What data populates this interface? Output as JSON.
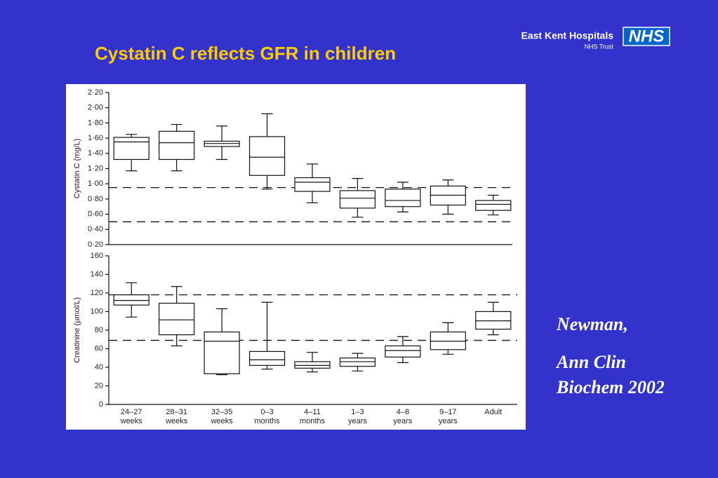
{
  "slide": {
    "title": "Cystatin C reflects GFR in children",
    "org": "East Kent Hospitals",
    "org_sub": "NHS Trust",
    "logo": "NHS",
    "reference": [
      "Newman,",
      "Ann Clin",
      "Biochem 2002"
    ]
  },
  "chart_data": [
    {
      "type": "box",
      "y_label": "Cystatin C (mg/L)",
      "ylim": [
        0.2,
        2.2
      ],
      "yticks": [
        {
          "value": 0.2,
          "label": "0·20"
        },
        {
          "value": 0.4,
          "label": "0·40"
        },
        {
          "value": 0.6,
          "label": "0·60"
        },
        {
          "value": 0.8,
          "label": "0·80"
        },
        {
          "value": 1.0,
          "label": "1·00"
        },
        {
          "value": 1.2,
          "label": "1·20"
        },
        {
          "value": 1.4,
          "label": "1·40"
        },
        {
          "value": 1.6,
          "label": "1·60"
        },
        {
          "value": 1.8,
          "label": "1·80"
        },
        {
          "value": 2.0,
          "label": "2·00"
        },
        {
          "value": 2.2,
          "label": "2·20"
        }
      ],
      "reference_lines": [
        0.95,
        0.5
      ],
      "values": [
        {
          "min": 1.17,
          "q1": 1.32,
          "median": 1.55,
          "q3": 1.61,
          "max": 1.65
        },
        {
          "min": 1.17,
          "q1": 1.32,
          "median": 1.54,
          "q3": 1.69,
          "max": 1.78
        },
        {
          "min": 1.32,
          "q1": 1.49,
          "median": 1.53,
          "q3": 1.56,
          "max": 1.76
        },
        {
          "min": 0.93,
          "q1": 1.11,
          "median": 1.35,
          "q3": 1.62,
          "max": 1.92
        },
        {
          "min": 0.75,
          "q1": 0.9,
          "median": 1.02,
          "q3": 1.08,
          "max": 1.26
        },
        {
          "min": 0.56,
          "q1": 0.68,
          "median": 0.81,
          "q3": 0.91,
          "max": 1.07
        },
        {
          "min": 0.63,
          "q1": 0.7,
          "median": 0.78,
          "q3": 0.93,
          "max": 1.02
        },
        {
          "min": 0.6,
          "q1": 0.72,
          "median": 0.85,
          "q3": 0.97,
          "max": 1.05
        },
        {
          "min": 0.59,
          "q1": 0.65,
          "median": 0.73,
          "q3": 0.78,
          "max": 0.85
        }
      ]
    },
    {
      "type": "box",
      "y_label": "Creatinine (µmol/L)",
      "ylim": [
        0,
        160
      ],
      "yticks": [
        0,
        20,
        40,
        60,
        80,
        100,
        120,
        140,
        160
      ],
      "reference_lines": [
        118,
        69
      ],
      "categories": [
        [
          "24–27",
          "weeks"
        ],
        [
          "28–31",
          "weeks"
        ],
        [
          "32–35",
          "weeks"
        ],
        [
          "0–3",
          "months"
        ],
        [
          "4–11",
          "months"
        ],
        [
          "1–3",
          "years"
        ],
        [
          "4–8",
          "years"
        ],
        [
          "9–17",
          "years"
        ],
        [
          "Adult"
        ]
      ],
      "values": [
        {
          "min": 94,
          "q1": 107,
          "median": 112,
          "q3": 118,
          "max": 131
        },
        {
          "min": 63,
          "q1": 75,
          "median": 91,
          "q3": 109,
          "max": 127
        },
        {
          "min": 32,
          "q1": 33,
          "median": 68,
          "q3": 78,
          "max": 103
        },
        {
          "min": 38,
          "q1": 42,
          "median": 48,
          "q3": 57,
          "max": 110
        },
        {
          "min": 35,
          "q1": 39,
          "median": 42,
          "q3": 46,
          "max": 56
        },
        {
          "min": 36,
          "q1": 41,
          "median": 46,
          "q3": 50,
          "max": 55
        },
        {
          "min": 45,
          "q1": 51,
          "median": 58,
          "q3": 63,
          "max": 73
        },
        {
          "min": 54,
          "q1": 59,
          "median": 68,
          "q3": 78,
          "max": 88
        },
        {
          "min": 75,
          "q1": 81,
          "median": 90,
          "q3": 100,
          "max": 110
        }
      ]
    }
  ]
}
